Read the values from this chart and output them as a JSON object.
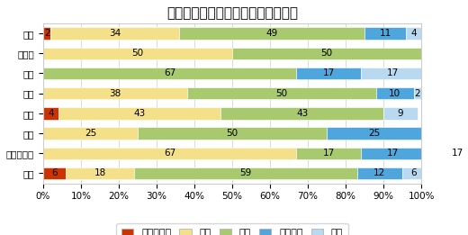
{
  "title": "経営者の供給意欲について（割合）",
  "categories": [
    "全国",
    "北海道",
    "東北",
    "関東",
    "中部",
    "近畿",
    "中国・四国",
    "九州"
  ],
  "series": {
    "かなり強い": [
      2,
      0,
      0,
      0,
      4,
      0,
      0,
      6
    ],
    "強い": [
      34,
      50,
      0,
      38,
      43,
      25,
      67,
      18
    ],
    "普通": [
      49,
      50,
      67,
      50,
      43,
      50,
      17,
      59
    ],
    "やや弱い": [
      11,
      0,
      17,
      10,
      0,
      25,
      17,
      12
    ],
    "弱い": [
      4,
      0,
      17,
      2,
      9,
      0,
      17,
      6
    ]
  },
  "colors": {
    "かなり強い": "#cc3300",
    "強い": "#f5e08a",
    "普通": "#a8c96e",
    "やや弱い": "#4ea6dc",
    "弱い": "#b8d9f0"
  },
  "legend_order": [
    "かなり強い",
    "強い",
    "普通",
    "やや弱い",
    "弱い"
  ],
  "xlim": [
    0,
    100
  ],
  "xticks": [
    0,
    10,
    20,
    30,
    40,
    50,
    60,
    70,
    80,
    90,
    100
  ],
  "xticklabels": [
    "0%",
    "10%",
    "20%",
    "30%",
    "40%",
    "50%",
    "60%",
    "70%",
    "80%",
    "90%",
    "100%"
  ],
  "background_color": "#ffffff",
  "grid_color": "#cccccc",
  "title_fontsize": 11,
  "label_fontsize": 7.5,
  "tick_fontsize": 7.5,
  "legend_fontsize": 8
}
